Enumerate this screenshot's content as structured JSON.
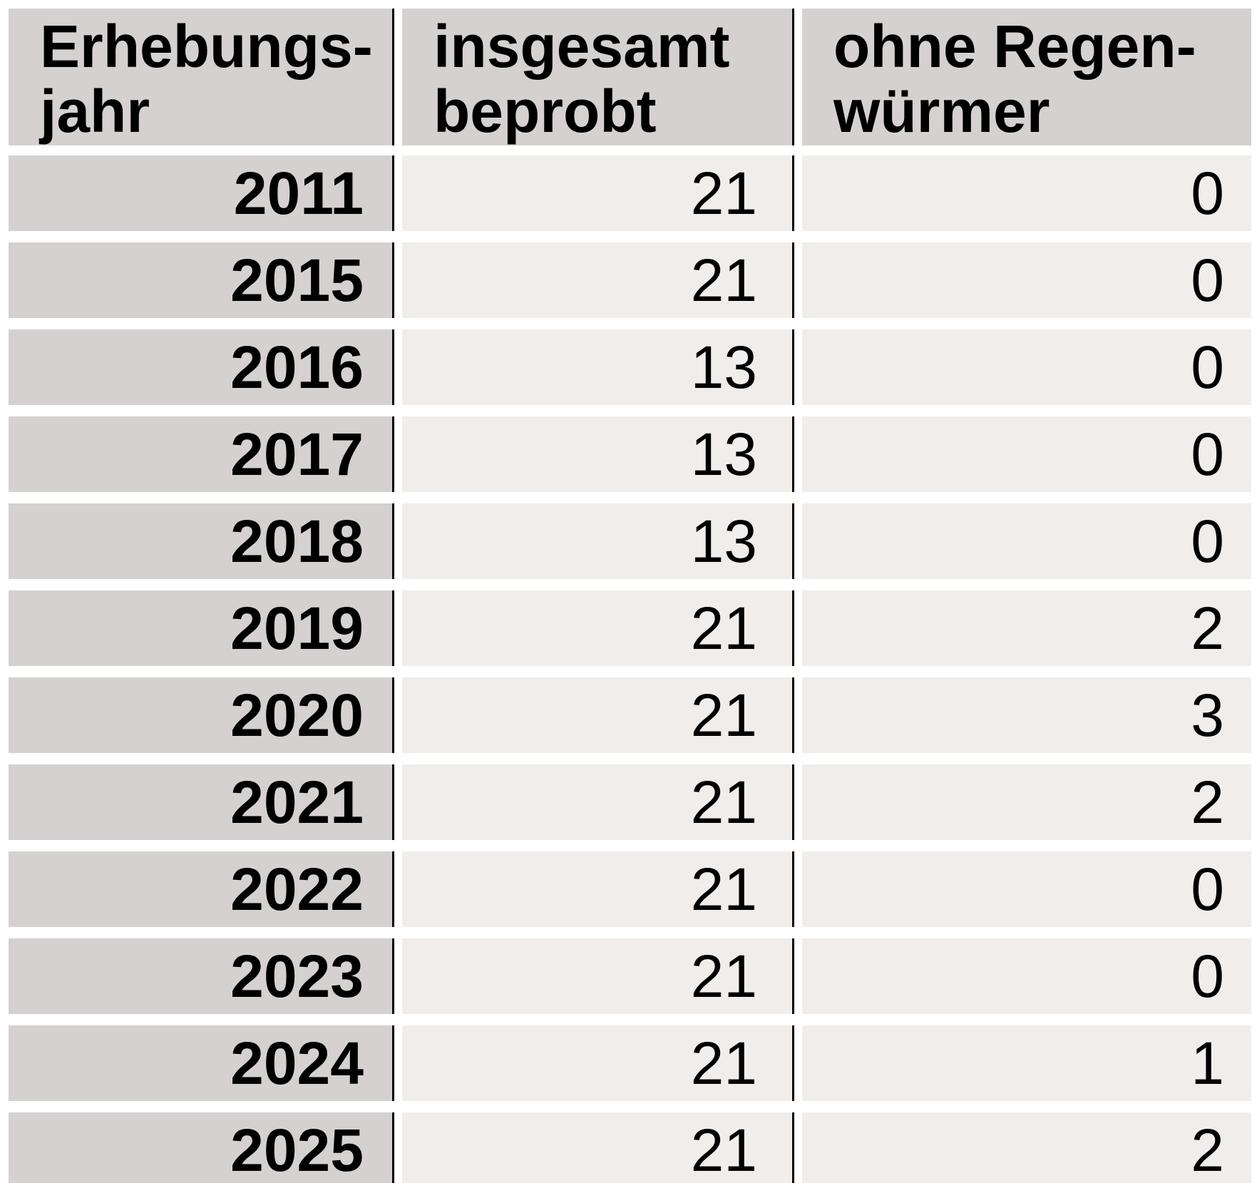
{
  "page": {
    "background": "#ffffff"
  },
  "colors": {
    "header_bg": "#d5d1d0",
    "year_column_bg": "#d5d1d0",
    "data_cell_bg": "#f1edeb",
    "row_gap": "#ffffff",
    "column_rule": "#000000",
    "text": "#000000"
  },
  "table": {
    "header": {
      "year": {
        "line1": "Erhebungs-",
        "line2": "jahr"
      },
      "sampled": {
        "line1": "insgesamt",
        "line2": "beprobt"
      },
      "without": {
        "line1": "ohne Regen-",
        "line2": "würmer"
      }
    },
    "rows": [
      {
        "year": "2011",
        "sampled": "21",
        "without_earthworms": "0"
      },
      {
        "year": "2015",
        "sampled": "21",
        "without_earthworms": "0"
      },
      {
        "year": "2016",
        "sampled": "13",
        "without_earthworms": "0"
      },
      {
        "year": "2017",
        "sampled": "13",
        "without_earthworms": "0"
      },
      {
        "year": "2018",
        "sampled": "13",
        "without_earthworms": "0"
      },
      {
        "year": "2019",
        "sampled": "21",
        "without_earthworms": "2"
      },
      {
        "year": "2020",
        "sampled": "21",
        "without_earthworms": "3"
      },
      {
        "year": "2021",
        "sampled": "21",
        "without_earthworms": "2"
      },
      {
        "year": "2022",
        "sampled": "21",
        "without_earthworms": "0"
      },
      {
        "year": "2023",
        "sampled": "21",
        "without_earthworms": "0"
      },
      {
        "year": "2024",
        "sampled": "21",
        "without_earthworms": "1"
      },
      {
        "year": "2025",
        "sampled": "21",
        "without_earthworms": "2"
      }
    ]
  },
  "chart_data": {
    "type": "table",
    "columns": [
      "Erhebungsjahr",
      "insgesamt beprobt",
      "ohne Regenwürmer"
    ],
    "rows": [
      [
        2011,
        21,
        0
      ],
      [
        2015,
        21,
        0
      ],
      [
        2016,
        13,
        0
      ],
      [
        2017,
        13,
        0
      ],
      [
        2018,
        13,
        0
      ],
      [
        2019,
        21,
        2
      ],
      [
        2020,
        21,
        3
      ],
      [
        2021,
        21,
        2
      ],
      [
        2022,
        21,
        0
      ],
      [
        2023,
        21,
        0
      ],
      [
        2024,
        21,
        1
      ],
      [
        2025,
        21,
        2
      ]
    ]
  }
}
